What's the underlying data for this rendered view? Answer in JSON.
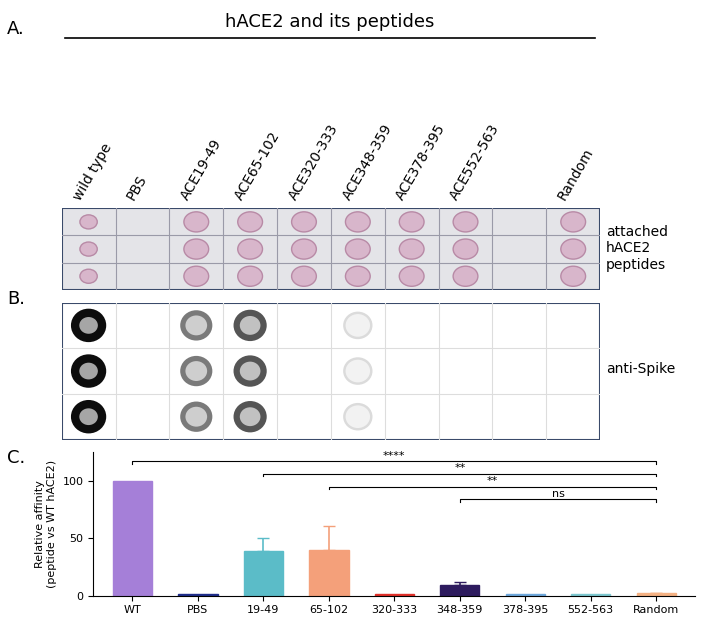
{
  "header": "hACE2 and its peptides",
  "lanes": [
    "wild type",
    "PBS",
    "ACE19-49",
    "ACE65-102",
    "ACE320-333",
    "ACE348-359",
    "ACE378-395",
    "ACE552-563",
    null,
    "Random"
  ],
  "panel_a": {
    "label": "A.",
    "side_label": "attached\nhACE2\npeptides",
    "rows": 3,
    "spots": [
      0.7,
      0,
      1,
      1,
      1,
      1,
      1,
      1,
      0,
      1
    ]
  },
  "panel_b": {
    "label": "B.",
    "side_label": "anti-Spike",
    "rows": 3,
    "signal": [
      1.0,
      0,
      0.55,
      0.7,
      0,
      0.15,
      0,
      0,
      0,
      0
    ]
  },
  "chart_data": {
    "type": "bar",
    "panel_label": "C.",
    "y_label": "Relative affinity\n(peptide vs WT hACE2)",
    "categories": [
      "WT",
      "PBS",
      "19-49",
      "65-102",
      "320-333",
      "348-359",
      "378-395",
      "552-563",
      "Random"
    ],
    "values": [
      100,
      1,
      39,
      40,
      1,
      9,
      1,
      1,
      2
    ],
    "errors": [
      0,
      0,
      11,
      21,
      0,
      3,
      0,
      0,
      0.5
    ],
    "colors": [
      "#a57fd8",
      "#1f2d8a",
      "#5bbcc8",
      "#f4a07a",
      "#e0302a",
      "#2d1b5e",
      "#6fa8dc",
      "#7ec8d0",
      "#f4b183"
    ],
    "ylim": [
      0,
      125
    ],
    "yticks": [
      0,
      50,
      100
    ],
    "grid": false,
    "comparisons": [
      {
        "from": "WT",
        "to": "Random",
        "label": "****"
      },
      {
        "from": "19-49",
        "to": "Random",
        "label": "**"
      },
      {
        "from": "65-102",
        "to": "Random",
        "label": "**"
      },
      {
        "from": "348-359",
        "to": "Random",
        "label": "ns"
      }
    ]
  }
}
